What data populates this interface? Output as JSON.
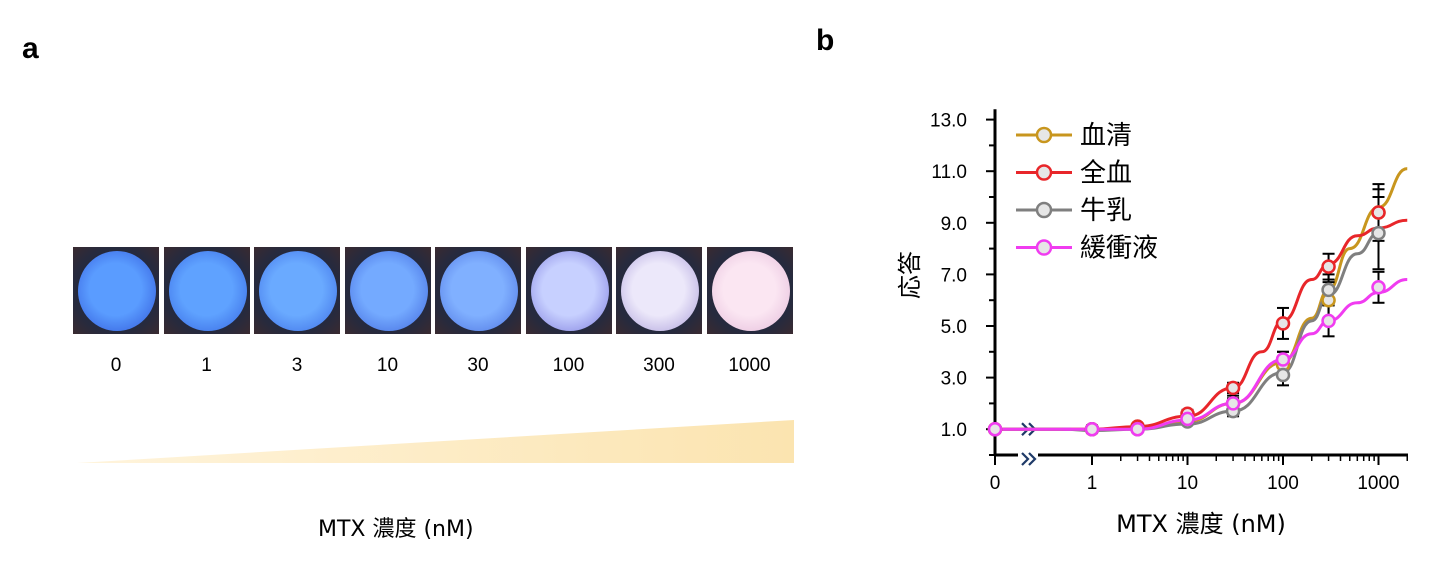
{
  "panel_a": {
    "label": "a",
    "swatches": [
      {
        "concentration": "0",
        "center": "#5a9cff",
        "edge": "#2f55d8"
      },
      {
        "concentration": "1",
        "center": "#5fa2ff",
        "edge": "#3463e0"
      },
      {
        "concentration": "3",
        "center": "#6aaaff",
        "edge": "#3a6ae4"
      },
      {
        "concentration": "10",
        "center": "#74aaff",
        "edge": "#3f66dc"
      },
      {
        "concentration": "30",
        "center": "#80b0ff",
        "edge": "#4a70e0"
      },
      {
        "concentration": "100",
        "center": "#c7d0ff",
        "edge": "#7a78dc"
      },
      {
        "concentration": "300",
        "center": "#ece8fa",
        "edge": "#a79ad8"
      },
      {
        "concentration": "1000",
        "center": "#fbe6f2",
        "edge": "#e2b8d8"
      }
    ],
    "xlabel": "MTX 濃度 (nM)"
  },
  "panel_b": {
    "label": "b"
  },
  "chart_data": {
    "type": "line",
    "xlabel": "MTX 濃度 (nM)",
    "ylabel": "応答",
    "x_scale": "log (with axis break after 0)",
    "x_ticks": [
      "0",
      "1",
      "10",
      "100",
      "1000"
    ],
    "y_ticks": [
      "1.0",
      "3.0",
      "5.0",
      "7.0",
      "9.0",
      "11.0",
      "13.0"
    ],
    "ylim": [
      0,
      13
    ],
    "legend_position": "top-left",
    "x": [
      0,
      1,
      3,
      10,
      30,
      100,
      300,
      1000
    ],
    "series": [
      {
        "name": "血清",
        "color": "#c8961e",
        "values": [
          1.0,
          1.0,
          1.1,
          1.5,
          2.0,
          3.5,
          6.0,
          9.4
        ],
        "errors": [
          0.05,
          0.15,
          0.1,
          0.15,
          0.3,
          0.5,
          0.7,
          1.1
        ],
        "fit": [
          [
            0.5,
            1.0
          ],
          [
            1,
            1.0
          ],
          [
            3,
            1.05
          ],
          [
            10,
            1.3
          ],
          [
            30,
            2.0
          ],
          [
            100,
            3.6
          ],
          [
            200,
            5.3
          ],
          [
            300,
            6.4
          ],
          [
            500,
            8.0
          ],
          [
            1000,
            9.6
          ],
          [
            2000,
            11.1
          ]
        ]
      },
      {
        "name": "全血",
        "color": "#e8262a",
        "values": [
          1.0,
          1.0,
          1.1,
          1.6,
          2.6,
          5.1,
          7.3,
          9.4
        ],
        "errors": [
          0.05,
          0.1,
          0.1,
          0.15,
          0.2,
          0.6,
          0.5,
          0.9
        ],
        "fit": [
          [
            0.5,
            1.0
          ],
          [
            1,
            1.0
          ],
          [
            3,
            1.1
          ],
          [
            10,
            1.5
          ],
          [
            30,
            2.6
          ],
          [
            60,
            4.0
          ],
          [
            100,
            5.2
          ],
          [
            200,
            6.8
          ],
          [
            300,
            7.4
          ],
          [
            600,
            8.5
          ],
          [
            1000,
            8.8
          ],
          [
            2000,
            9.1
          ]
        ]
      },
      {
        "name": "牛乳",
        "color": "#7f7f7f",
        "values": [
          1.0,
          1.0,
          1.0,
          1.3,
          1.7,
          3.1,
          6.4,
          8.6
        ],
        "errors": [
          0.05,
          0.1,
          0.1,
          0.1,
          0.2,
          0.4,
          0.6,
          1.4
        ],
        "fit": [
          [
            0.5,
            1.0
          ],
          [
            1,
            0.95
          ],
          [
            3,
            1.0
          ],
          [
            10,
            1.2
          ],
          [
            30,
            1.7
          ],
          [
            100,
            3.2
          ],
          [
            200,
            5.2
          ],
          [
            300,
            6.2
          ],
          [
            600,
            7.8
          ],
          [
            1000,
            8.6
          ]
        ]
      },
      {
        "name": "緩衝液",
        "color": "#f03cf0",
        "values": [
          1.0,
          1.0,
          1.0,
          1.4,
          2.0,
          3.7,
          5.2,
          6.5
        ],
        "errors": [
          0.05,
          0.1,
          0.1,
          0.1,
          0.2,
          0.3,
          0.6,
          0.6
        ],
        "fit": [
          [
            0.5,
            1.0
          ],
          [
            1,
            1.0
          ],
          [
            3,
            1.0
          ],
          [
            10,
            1.35
          ],
          [
            30,
            2.0
          ],
          [
            100,
            3.7
          ],
          [
            200,
            4.7
          ],
          [
            300,
            5.2
          ],
          [
            600,
            5.9
          ],
          [
            1000,
            6.3
          ],
          [
            2000,
            6.8
          ]
        ]
      }
    ]
  }
}
